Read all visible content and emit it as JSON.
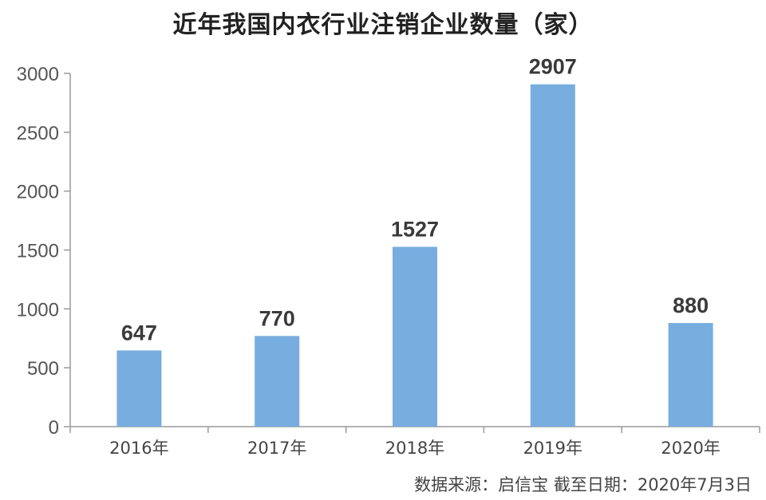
{
  "title": "近年我国内衣行业注销企业数量（家）",
  "source": "数据来源：启信宝 截至日期：2020年7月3日",
  "colors": {
    "bar": "#78ADDF",
    "axis": "#9a9a9a"
  },
  "chart_data": {
    "type": "bar",
    "title": "近年我国内衣行业注销企业数量（家）",
    "categories": [
      "2016年",
      "2017年",
      "2018年",
      "2019年",
      "2020年"
    ],
    "values": [
      647,
      770,
      1527,
      2907,
      880
    ],
    "data_labels": [
      "647",
      "770",
      "1527",
      "2907",
      "880"
    ],
    "xlabel": "",
    "ylabel": "",
    "ylim": [
      0,
      3000
    ],
    "yticks": [
      0,
      500,
      1000,
      1500,
      2000,
      2500,
      3000
    ],
    "grid": false,
    "legend": "none"
  }
}
